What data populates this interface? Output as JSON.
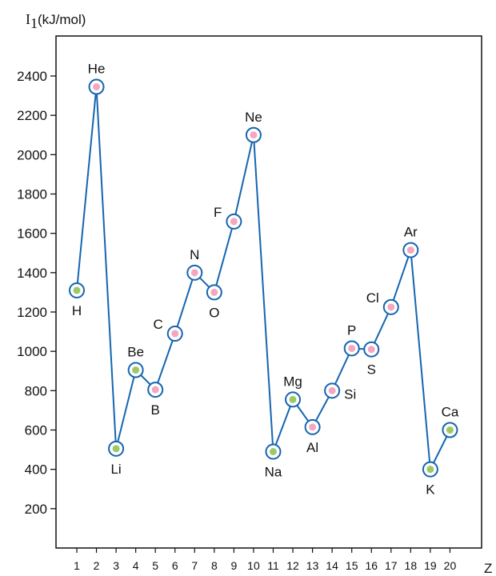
{
  "chart_data": {
    "type": "line",
    "ylabel_symbol": "I",
    "ylabel_subscript": "1",
    "ylabel_unit": "(kJ/mol)",
    "xlabel": "Z",
    "ylim": [
      0,
      2600
    ],
    "yticks": [
      200,
      400,
      600,
      800,
      1000,
      1200,
      1400,
      1600,
      1800,
      2000,
      2200,
      2400
    ],
    "x": [
      1,
      2,
      3,
      4,
      5,
      6,
      7,
      8,
      9,
      10,
      11,
      12,
      13,
      14,
      15,
      16,
      17,
      18,
      19,
      20
    ],
    "y": [
      1310,
      2345,
      505,
      905,
      805,
      1090,
      1400,
      1300,
      1660,
      2100,
      490,
      755,
      615,
      800,
      1015,
      1010,
      1225,
      1515,
      400,
      600
    ],
    "labels": [
      "H",
      "He",
      "Li",
      "Be",
      "B",
      "C",
      "N",
      "O",
      "F",
      "Ne",
      "Na",
      "Mg",
      "Al",
      "Si",
      "P",
      "S",
      "Cl",
      "Ar",
      "K",
      "Ca"
    ],
    "label_positions": [
      "below",
      "above",
      "below",
      "above",
      "below",
      "left",
      "above",
      "below",
      "left",
      "above",
      "below",
      "above",
      "below",
      "right",
      "above",
      "below",
      "left",
      "above",
      "below",
      "above"
    ],
    "line_color": "#1565b0",
    "marker_stroke": "#1565b0",
    "point_colors": {
      "alkali_alkaline": "#9cc86a",
      "other": "#f2a8c0"
    },
    "point_kinds": [
      "alkali_alkaline",
      "other",
      "alkali_alkaline",
      "alkali_alkaline",
      "other",
      "other",
      "other",
      "other",
      "other",
      "other",
      "alkali_alkaline",
      "alkali_alkaline",
      "other",
      "other",
      "other",
      "other",
      "other",
      "other",
      "alkali_alkaline",
      "alkali_alkaline"
    ],
    "grid": false
  }
}
